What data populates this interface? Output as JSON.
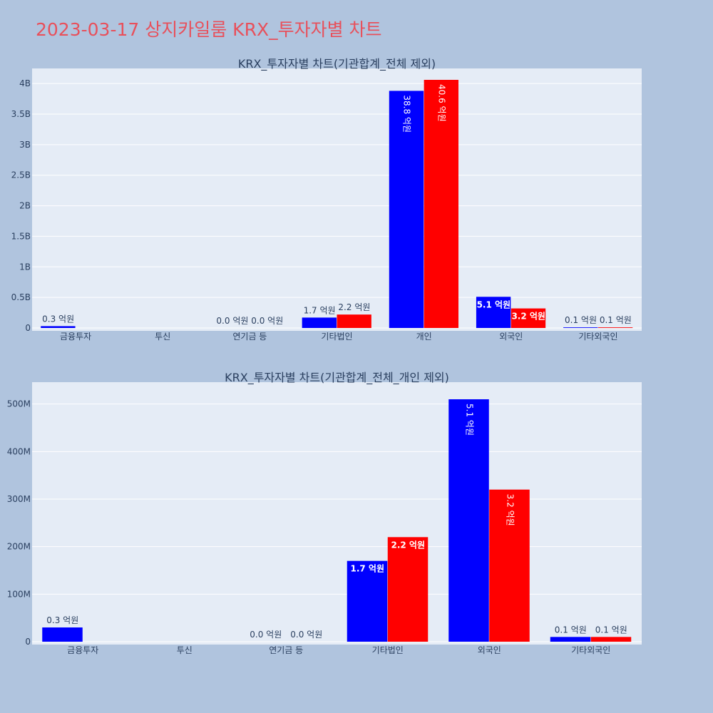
{
  "page_title": "2023-03-17 상지카일룸 KRX_투자자별 차트",
  "colors": {
    "background": "#b0c4de",
    "plot_bg": "#e5ecf6",
    "series_1": "#0000ff",
    "series_2": "#ff0000",
    "title": "#e8505b"
  },
  "chart_data": [
    {
      "type": "bar",
      "title": "KRX_투자자별 차트(기관합계_전체 제외)",
      "categories": [
        "금융투자",
        "투신",
        "연기금 등",
        "기타법인",
        "개인",
        "외국인",
        "기타외국인"
      ],
      "ylim": [
        0,
        4200000000
      ],
      "y_ticks": [
        0,
        500000000,
        1000000000,
        1500000000,
        2000000000,
        2500000000,
        3000000000,
        3500000000,
        4000000000
      ],
      "y_tick_labels": [
        "0",
        "0.5B",
        "1B",
        "1.5B",
        "2B",
        "2.5B",
        "3B",
        "3.5B",
        "4B"
      ],
      "grid": true,
      "series": [
        {
          "color": "#0000ff",
          "values": [
            30000000,
            0,
            0,
            170000000,
            3880000000,
            510000000,
            10000000
          ],
          "labels": [
            "0.3 억원",
            "",
            "0.0 억원",
            "1.7 억원",
            "38.8 억원",
            "5.1 억원",
            "0.1 억원"
          ]
        },
        {
          "color": "#ff0000",
          "values": [
            0,
            0,
            0,
            220000000,
            4060000000,
            320000000,
            10000000
          ],
          "labels": [
            "",
            "",
            "0.0 억원",
            "2.2 억원",
            "40.6 억원",
            "3.2 억원",
            "0.1 억원"
          ]
        }
      ]
    },
    {
      "type": "bar",
      "title": "KRX_투자자별 차트(기관합계_전체_개인 제외)",
      "categories": [
        "금융투자",
        "투신",
        "연기금 등",
        "기타법인",
        "외국인",
        "기타외국인"
      ],
      "ylim": [
        0,
        540000000
      ],
      "y_ticks": [
        0,
        100000000,
        200000000,
        300000000,
        400000000,
        500000000
      ],
      "y_tick_labels": [
        "0",
        "100M",
        "200M",
        "300M",
        "400M",
        "500M"
      ],
      "grid": true,
      "series": [
        {
          "color": "#0000ff",
          "values": [
            30000000,
            0,
            0,
            170000000,
            510000000,
            10000000
          ],
          "labels": [
            "0.3 억원",
            "",
            "0.0 억원",
            "1.7 억원",
            "5.1 억원",
            "0.1 억원"
          ]
        },
        {
          "color": "#ff0000",
          "values": [
            0,
            0,
            0,
            220000000,
            320000000,
            10000000
          ],
          "labels": [
            "",
            "",
            "0.0 억원",
            "2.2 억원",
            "3.2 억원",
            "0.1 억원"
          ]
        }
      ]
    }
  ]
}
